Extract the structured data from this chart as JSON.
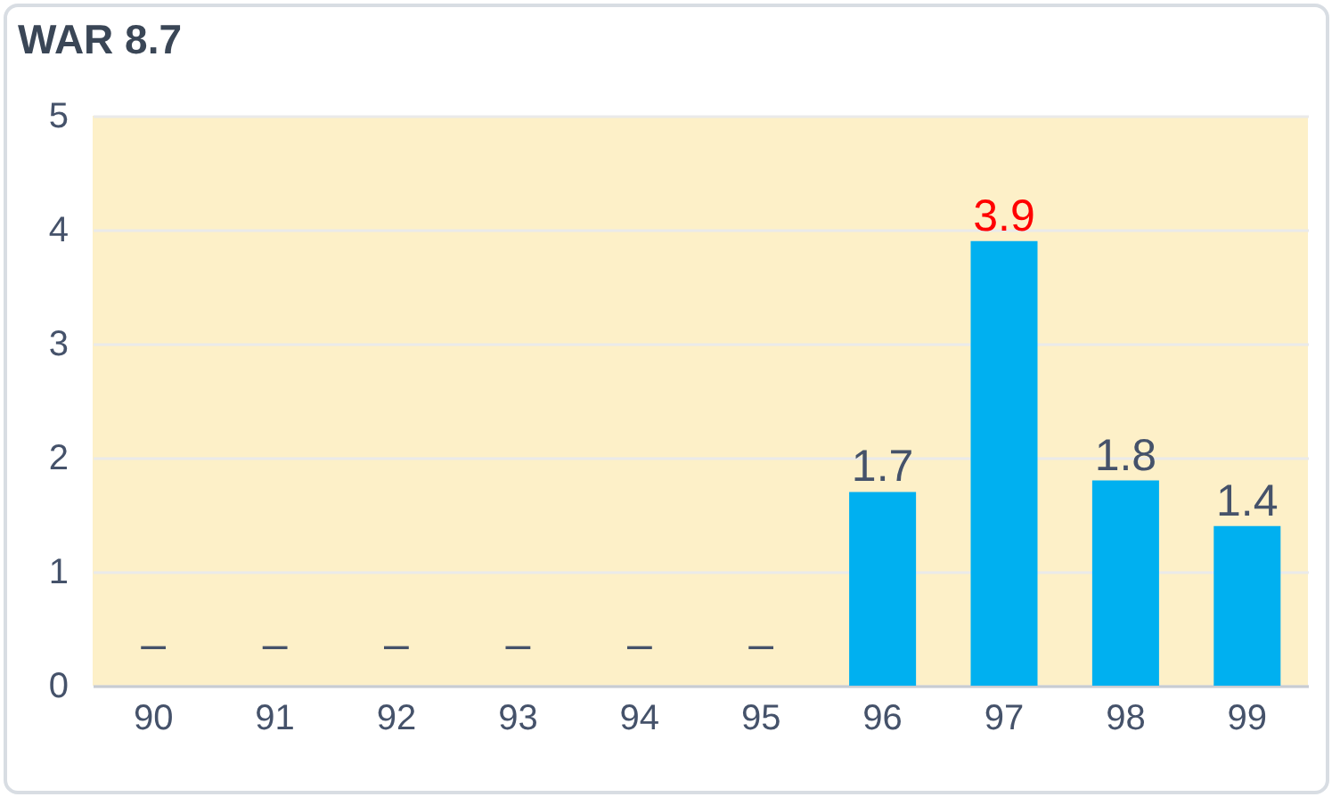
{
  "chart_data": {
    "type": "bar",
    "title": "WAR 8.7",
    "categories": [
      "90",
      "91",
      "92",
      "93",
      "94",
      "95",
      "96",
      "97",
      "98",
      "99"
    ],
    "values": [
      null,
      null,
      null,
      null,
      null,
      null,
      1.7,
      3.9,
      1.8,
      1.4
    ],
    "value_labels": [
      "–",
      "–",
      "–",
      "–",
      "–",
      "–",
      "1.7",
      "3.9",
      "1.8",
      "1.4"
    ],
    "colors": [
      "#00b0f0",
      "#00b0f0",
      "#00b0f0",
      "#00b0f0",
      "#00b0f0",
      "#00b0f0",
      "#00b0f0",
      "#00b0f0",
      "#00b0f0",
      "#00b0f0"
    ],
    "ylim": [
      0,
      5
    ],
    "yticks": [
      0,
      1,
      2,
      3,
      4,
      5
    ],
    "grid": "y"
  }
}
